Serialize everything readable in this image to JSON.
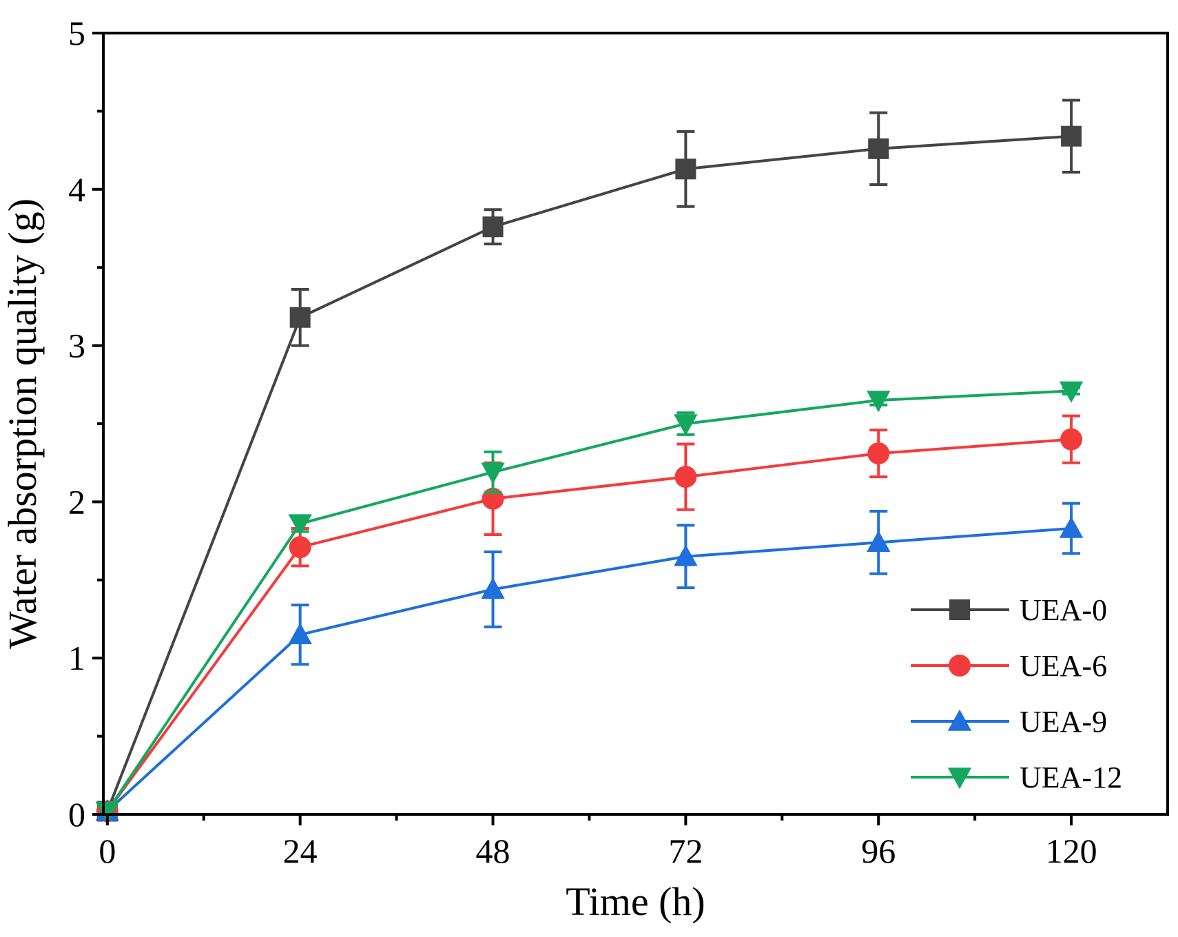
{
  "chart_data": {
    "type": "line",
    "xlabel": "Time (h)",
    "ylabel": "Water absorption quality (g)",
    "xlim": [
      -0.5,
      132
    ],
    "ylim": [
      0,
      5
    ],
    "xticks": [
      0,
      24,
      48,
      72,
      96,
      120
    ],
    "xtick_labels": [
      "0",
      "24",
      "48",
      "72",
      "96",
      "120"
    ],
    "yticks": [
      0,
      1,
      2,
      3,
      4,
      5
    ],
    "ytick_labels": [
      "0",
      "1",
      "2",
      "3",
      "4",
      "5"
    ],
    "x_minor_ticks": [
      12,
      36,
      60,
      84,
      108
    ],
    "y_minor_ticks": [
      0.5,
      1.5,
      2.5,
      3.5,
      4.5
    ],
    "grid": false,
    "legend_position": "right",
    "x": [
      0,
      24,
      48,
      72,
      96,
      120
    ],
    "series": [
      {
        "name": "UEA-0",
        "color": "#444444",
        "marker": "square",
        "values": [
          0.02,
          3.18,
          3.76,
          4.13,
          4.26,
          4.34
        ],
        "errors": [
          0,
          0.18,
          0.11,
          0.24,
          0.23,
          0.23
        ]
      },
      {
        "name": "UEA-6",
        "color": "#f23c3c",
        "marker": "circle",
        "values": [
          0.02,
          1.71,
          2.02,
          2.16,
          2.31,
          2.4
        ],
        "errors": [
          0,
          0.12,
          0.23,
          0.21,
          0.15,
          0.15
        ]
      },
      {
        "name": "UEA-9",
        "color": "#1f6fdc",
        "marker": "triangle-up",
        "values": [
          0.02,
          1.15,
          1.44,
          1.65,
          1.74,
          1.83
        ],
        "errors": [
          0,
          0.19,
          0.24,
          0.2,
          0.2,
          0.16
        ]
      },
      {
        "name": "UEA-12",
        "color": "#14a85e",
        "marker": "triangle-down",
        "values": [
          0.02,
          1.86,
          2.19,
          2.5,
          2.65,
          2.71
        ],
        "errors": [
          0,
          0.05,
          0.13,
          0.07,
          0.03,
          0.02
        ]
      }
    ]
  }
}
